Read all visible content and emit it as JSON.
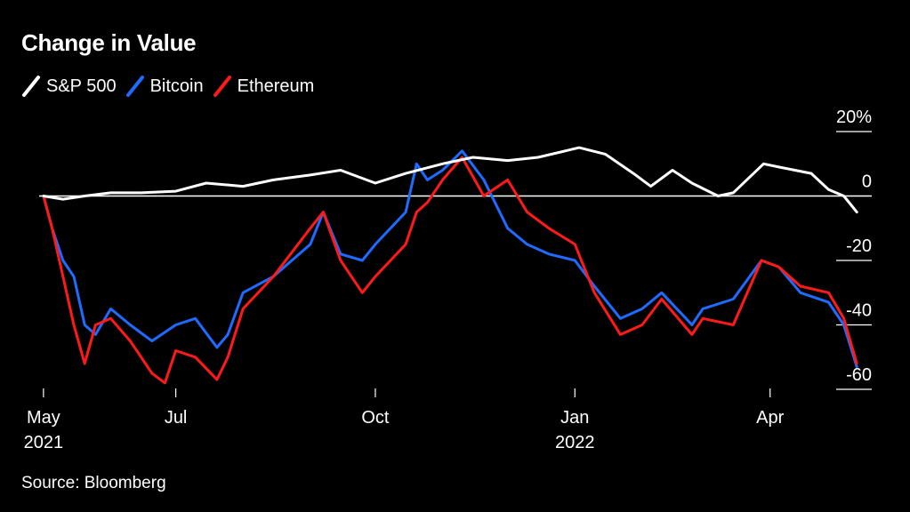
{
  "chart_data": {
    "type": "line",
    "title": "Change in Value",
    "source": "Source: Bloomberg",
    "colors": {
      "S&P 500": "#ffffff",
      "Bitcoin": "#1f6bff",
      "Ethereum": "#ff1a1a"
    },
    "x_ticks": [
      {
        "date": "2021-05-01",
        "label": "May",
        "sublabel": "2021"
      },
      {
        "date": "2021-07-01",
        "label": "Jul",
        "sublabel": ""
      },
      {
        "date": "2021-10-01",
        "label": "Oct",
        "sublabel": ""
      },
      {
        "date": "2022-01-01",
        "label": "Jan",
        "sublabel": "2022"
      },
      {
        "date": "2022-04-01",
        "label": "Apr",
        "sublabel": ""
      }
    ],
    "y_ticks": [
      {
        "value": 20,
        "label": "20%"
      },
      {
        "value": 0,
        "label": "0"
      },
      {
        "value": -20,
        "label": "-20"
      },
      {
        "value": -40,
        "label": "-40"
      },
      {
        "value": -60,
        "label": "-60"
      }
    ],
    "xlim": [
      "2021-04-29",
      "2022-05-15"
    ],
    "ylim": [
      -60,
      20
    ],
    "legend_position": "top-left",
    "series": [
      {
        "name": "S&P 500",
        "points": [
          [
            "2021-05-01",
            0
          ],
          [
            "2021-05-10",
            -1
          ],
          [
            "2021-05-20",
            0
          ],
          [
            "2021-06-01",
            1
          ],
          [
            "2021-06-15",
            1
          ],
          [
            "2021-07-01",
            1.5
          ],
          [
            "2021-07-15",
            4
          ],
          [
            "2021-08-01",
            3
          ],
          [
            "2021-08-15",
            5
          ],
          [
            "2021-09-01",
            6.5
          ],
          [
            "2021-09-15",
            8
          ],
          [
            "2021-10-01",
            4
          ],
          [
            "2021-10-15",
            7
          ],
          [
            "2021-11-01",
            10
          ],
          [
            "2021-11-15",
            12
          ],
          [
            "2021-12-01",
            11
          ],
          [
            "2021-12-15",
            12
          ],
          [
            "2022-01-03",
            15
          ],
          [
            "2022-01-15",
            13
          ],
          [
            "2022-01-28",
            7
          ],
          [
            "2022-02-05",
            3
          ],
          [
            "2022-02-15",
            8
          ],
          [
            "2022-02-24",
            4
          ],
          [
            "2022-03-08",
            0
          ],
          [
            "2022-03-15",
            1
          ],
          [
            "2022-03-29",
            10
          ],
          [
            "2022-04-05",
            9
          ],
          [
            "2022-04-20",
            7
          ],
          [
            "2022-04-28",
            2
          ],
          [
            "2022-05-05",
            0
          ],
          [
            "2022-05-11",
            -5
          ]
        ]
      },
      {
        "name": "Bitcoin",
        "points": [
          [
            "2021-05-01",
            0
          ],
          [
            "2021-05-05",
            -10
          ],
          [
            "2021-05-10",
            -20
          ],
          [
            "2021-05-15",
            -25
          ],
          [
            "2021-05-20",
            -40
          ],
          [
            "2021-05-25",
            -43
          ],
          [
            "2021-06-01",
            -35
          ],
          [
            "2021-06-10",
            -40
          ],
          [
            "2021-06-20",
            -45
          ],
          [
            "2021-07-01",
            -40
          ],
          [
            "2021-07-10",
            -38
          ],
          [
            "2021-07-20",
            -47
          ],
          [
            "2021-07-25",
            -43
          ],
          [
            "2021-08-01",
            -30
          ],
          [
            "2021-08-15",
            -25
          ],
          [
            "2021-09-01",
            -15
          ],
          [
            "2021-09-07",
            -5
          ],
          [
            "2021-09-15",
            -18
          ],
          [
            "2021-09-25",
            -20
          ],
          [
            "2021-10-01",
            -15
          ],
          [
            "2021-10-15",
            -5
          ],
          [
            "2021-10-20",
            10
          ],
          [
            "2021-10-25",
            5
          ],
          [
            "2021-11-01",
            8
          ],
          [
            "2021-11-10",
            14
          ],
          [
            "2021-11-20",
            5
          ],
          [
            "2021-12-01",
            -10
          ],
          [
            "2021-12-10",
            -15
          ],
          [
            "2021-12-20",
            -18
          ],
          [
            "2022-01-01",
            -20
          ],
          [
            "2022-01-10",
            -28
          ],
          [
            "2022-01-22",
            -38
          ],
          [
            "2022-02-01",
            -35
          ],
          [
            "2022-02-10",
            -30
          ],
          [
            "2022-02-24",
            -40
          ],
          [
            "2022-03-01",
            -35
          ],
          [
            "2022-03-15",
            -32
          ],
          [
            "2022-03-28",
            -20
          ],
          [
            "2022-04-05",
            -22
          ],
          [
            "2022-04-15",
            -30
          ],
          [
            "2022-04-28",
            -33
          ],
          [
            "2022-05-05",
            -40
          ],
          [
            "2022-05-11",
            -53
          ]
        ]
      },
      {
        "name": "Ethereum",
        "points": [
          [
            "2021-05-01",
            0
          ],
          [
            "2021-05-05",
            -10
          ],
          [
            "2021-05-10",
            -25
          ],
          [
            "2021-05-15",
            -40
          ],
          [
            "2021-05-20",
            -52
          ],
          [
            "2021-05-25",
            -40
          ],
          [
            "2021-06-01",
            -38
          ],
          [
            "2021-06-10",
            -45
          ],
          [
            "2021-06-20",
            -55
          ],
          [
            "2021-06-26",
            -58
          ],
          [
            "2021-07-01",
            -48
          ],
          [
            "2021-07-10",
            -50
          ],
          [
            "2021-07-20",
            -57
          ],
          [
            "2021-07-25",
            -50
          ],
          [
            "2021-08-01",
            -35
          ],
          [
            "2021-08-15",
            -25
          ],
          [
            "2021-09-01",
            -10
          ],
          [
            "2021-09-07",
            -5
          ],
          [
            "2021-09-15",
            -20
          ],
          [
            "2021-09-25",
            -30
          ],
          [
            "2021-10-01",
            -25
          ],
          [
            "2021-10-15",
            -15
          ],
          [
            "2021-10-20",
            -5
          ],
          [
            "2021-10-25",
            -2
          ],
          [
            "2021-11-01",
            5
          ],
          [
            "2021-11-10",
            12
          ],
          [
            "2021-11-20",
            0
          ],
          [
            "2021-12-01",
            5
          ],
          [
            "2021-12-10",
            -5
          ],
          [
            "2021-12-20",
            -10
          ],
          [
            "2022-01-01",
            -15
          ],
          [
            "2022-01-10",
            -30
          ],
          [
            "2022-01-22",
            -43
          ],
          [
            "2022-02-01",
            -40
          ],
          [
            "2022-02-10",
            -32
          ],
          [
            "2022-02-24",
            -43
          ],
          [
            "2022-03-01",
            -38
          ],
          [
            "2022-03-15",
            -40
          ],
          [
            "2022-03-28",
            -20
          ],
          [
            "2022-04-05",
            -22
          ],
          [
            "2022-04-15",
            -28
          ],
          [
            "2022-04-28",
            -30
          ],
          [
            "2022-05-05",
            -38
          ],
          [
            "2022-05-11",
            -52
          ]
        ]
      }
    ]
  }
}
